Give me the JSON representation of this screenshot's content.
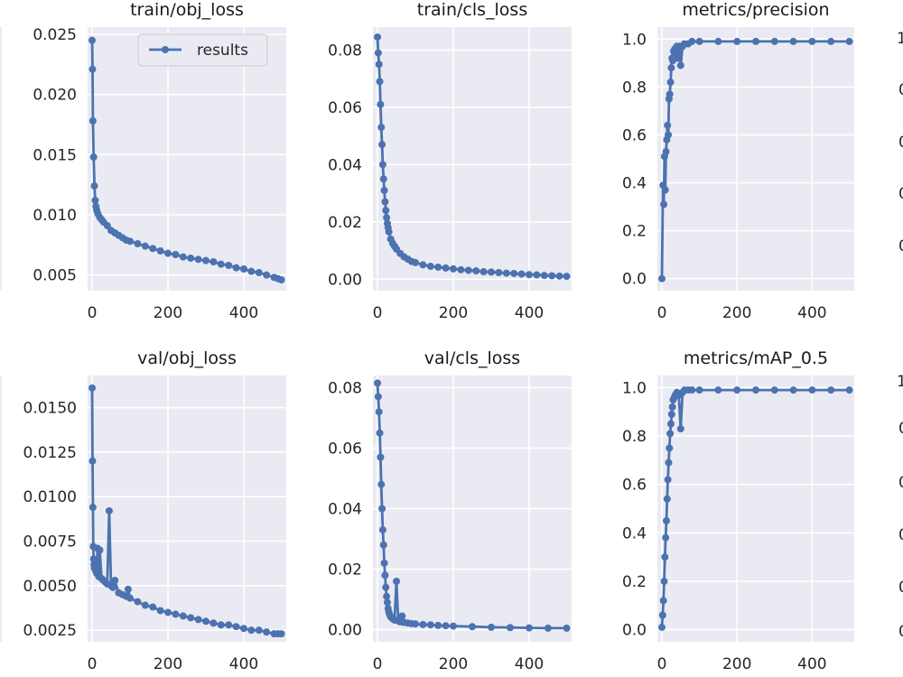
{
  "chart_data": [
    {
      "type": "line",
      "title": "train/obj_loss",
      "xlim": [
        -12,
        512
      ],
      "ylim": [
        0.0037,
        0.0256
      ],
      "xticks": [
        0,
        200,
        400
      ],
      "yticks": [
        0.005,
        0.01,
        0.015,
        0.02,
        0.025
      ],
      "ytick_labels": [
        "0.005",
        "0.010",
        "0.015",
        "0.020",
        "0.025"
      ],
      "grid": true,
      "legend": {
        "loc": "upper right",
        "entries": [
          "results"
        ]
      },
      "series": [
        {
          "name": "results",
          "x": [
            0,
            1,
            2,
            4,
            6,
            8,
            10,
            12,
            15,
            20,
            25,
            30,
            40,
            50,
            60,
            70,
            80,
            90,
            100,
            120,
            140,
            160,
            180,
            200,
            220,
            240,
            260,
            280,
            300,
            320,
            340,
            360,
            380,
            400,
            420,
            440,
            460,
            480,
            490,
            499
          ],
          "y": [
            0.0245,
            0.0221,
            0.0178,
            0.0148,
            0.0124,
            0.0112,
            0.0107,
            0.0104,
            0.0101,
            0.0098,
            0.0096,
            0.0094,
            0.0091,
            0.0087,
            0.0085,
            0.0083,
            0.0081,
            0.0079,
            0.0078,
            0.0076,
            0.0074,
            0.0072,
            0.007,
            0.0068,
            0.0067,
            0.0065,
            0.0064,
            0.0063,
            0.0062,
            0.0061,
            0.0059,
            0.0058,
            0.0056,
            0.0055,
            0.0053,
            0.0052,
            0.005,
            0.0048,
            0.0047,
            0.0046
          ]
        }
      ]
    },
    {
      "type": "line",
      "title": "train/cls_loss",
      "xlim": [
        -12,
        512
      ],
      "ylim": [
        -0.004,
        0.088
      ],
      "xticks": [
        0,
        200,
        400
      ],
      "yticks": [
        0,
        0.02,
        0.04,
        0.06,
        0.08
      ],
      "ytick_labels": [
        "0.00",
        "0.02",
        "0.04",
        "0.06",
        "0.08"
      ],
      "grid": true,
      "series": [
        {
          "name": "results",
          "x": [
            0,
            2,
            4,
            6,
            8,
            10,
            12,
            14,
            16,
            18,
            20,
            22,
            24,
            26,
            28,
            30,
            35,
            40,
            45,
            50,
            60,
            70,
            80,
            90,
            100,
            120,
            140,
            160,
            180,
            200,
            220,
            240,
            260,
            280,
            300,
            320,
            340,
            360,
            380,
            400,
            420,
            440,
            460,
            480,
            499
          ],
          "y": [
            0.0845,
            0.079,
            0.075,
            0.069,
            0.061,
            0.053,
            0.047,
            0.04,
            0.035,
            0.031,
            0.027,
            0.024,
            0.0215,
            0.0195,
            0.018,
            0.0165,
            0.014,
            0.0125,
            0.0115,
            0.0105,
            0.009,
            0.0078,
            0.007,
            0.0062,
            0.0058,
            0.005,
            0.0045,
            0.0042,
            0.0039,
            0.0036,
            0.0033,
            0.0031,
            0.0029,
            0.0026,
            0.0025,
            0.0023,
            0.0021,
            0.002,
            0.0018,
            0.0016,
            0.0015,
            0.0013,
            0.0012,
            0.0011,
            0.001
          ]
        }
      ]
    },
    {
      "type": "line",
      "title": "metrics/precision",
      "xlim": [
        -12,
        512
      ],
      "ylim": [
        -0.05,
        1.05
      ],
      "xticks": [
        0,
        200,
        400
      ],
      "yticks": [
        0,
        0.2,
        0.4,
        0.6,
        0.8,
        1.0
      ],
      "ytick_labels": [
        "0.0",
        "0.2",
        "0.4",
        "0.6",
        "0.8",
        "1.0"
      ],
      "grid": true,
      "series": [
        {
          "name": "results",
          "x": [
            0,
            3,
            5,
            7,
            9,
            11,
            13,
            15,
            17,
            19,
            21,
            23,
            25,
            27,
            29,
            31,
            33,
            35,
            37,
            40,
            43,
            46,
            50,
            55,
            60,
            70,
            80,
            100,
            150,
            200,
            250,
            300,
            350,
            400,
            450,
            499
          ],
          "y": [
            0.0,
            0.39,
            0.31,
            0.51,
            0.37,
            0.53,
            0.58,
            0.64,
            0.6,
            0.75,
            0.77,
            0.82,
            0.88,
            0.92,
            0.91,
            0.95,
            0.93,
            0.96,
            0.95,
            0.97,
            0.92,
            0.97,
            0.89,
            0.97,
            0.98,
            0.98,
            0.99,
            0.99,
            0.99,
            0.99,
            0.99,
            0.99,
            0.99,
            0.99,
            0.99,
            0.99
          ]
        }
      ]
    },
    {
      "type": "line",
      "title": "val/obj_loss",
      "xlim": [
        -12,
        512
      ],
      "ylim": [
        0.00185,
        0.0168
      ],
      "xticks": [
        0,
        200,
        400
      ],
      "yticks": [
        0.0025,
        0.005,
        0.0075,
        0.01,
        0.0125,
        0.015
      ],
      "ytick_labels": [
        "0.0025",
        "0.0050",
        "0.0075",
        "0.0100",
        "0.0125",
        "0.0150"
      ],
      "grid": true,
      "series": [
        {
          "name": "results",
          "x": [
            0,
            1,
            2,
            3,
            4,
            5,
            6,
            8,
            10,
            12,
            14,
            16,
            18,
            20,
            25,
            30,
            35,
            40,
            45,
            50,
            55,
            60,
            70,
            80,
            90,
            95,
            100,
            120,
            140,
            160,
            180,
            200,
            220,
            240,
            260,
            280,
            300,
            320,
            340,
            360,
            380,
            400,
            420,
            440,
            460,
            480,
            490,
            499
          ],
          "y": [
            0.0161,
            0.012,
            0.0094,
            0.0072,
            0.0065,
            0.0062,
            0.006,
            0.0059,
            0.0058,
            0.0057,
            0.0071,
            0.0056,
            0.0055,
            0.007,
            0.0054,
            0.0053,
            0.0052,
            0.0051,
            0.0092,
            0.005,
            0.0049,
            0.0053,
            0.0046,
            0.0045,
            0.0044,
            0.0048,
            0.0043,
            0.0041,
            0.0039,
            0.0038,
            0.0036,
            0.0035,
            0.0034,
            0.0033,
            0.0032,
            0.0031,
            0.003,
            0.0029,
            0.0028,
            0.0028,
            0.0027,
            0.0026,
            0.0025,
            0.0025,
            0.0024,
            0.0023,
            0.0023,
            0.0023
          ]
        }
      ]
    },
    {
      "type": "line",
      "title": "val/cls_loss",
      "xlim": [
        -12,
        512
      ],
      "ylim": [
        -0.004,
        0.084
      ],
      "xticks": [
        0,
        200,
        400
      ],
      "yticks": [
        0,
        0.02,
        0.04,
        0.06,
        0.08
      ],
      "ytick_labels": [
        "0.00",
        "0.02",
        "0.04",
        "0.06",
        "0.08"
      ],
      "grid": true,
      "series": [
        {
          "name": "results",
          "x": [
            0,
            2,
            4,
            6,
            8,
            10,
            12,
            14,
            16,
            18,
            20,
            22,
            24,
            26,
            28,
            30,
            32,
            35,
            40,
            45,
            50,
            55,
            60,
            65,
            70,
            80,
            90,
            100,
            120,
            140,
            160,
            180,
            200,
            250,
            300,
            350,
            400,
            450,
            499
          ],
          "y": [
            0.0815,
            0.077,
            0.072,
            0.065,
            0.057,
            0.048,
            0.04,
            0.033,
            0.028,
            0.022,
            0.018,
            0.014,
            0.011,
            0.009,
            0.007,
            0.0058,
            0.005,
            0.0042,
            0.0036,
            0.0032,
            0.016,
            0.0029,
            0.0026,
            0.0045,
            0.0024,
            0.0022,
            0.002,
            0.0019,
            0.0017,
            0.0016,
            0.0014,
            0.0013,
            0.0012,
            0.001,
            0.0008,
            0.0007,
            0.0006,
            0.0005,
            0.0005
          ]
        }
      ]
    },
    {
      "type": "line",
      "title": "metrics/mAP_0.5",
      "xlim": [
        -12,
        512
      ],
      "ylim": [
        -0.05,
        1.05
      ],
      "xticks": [
        0,
        200,
        400
      ],
      "yticks": [
        0,
        0.2,
        0.4,
        0.6,
        0.8,
        1.0
      ],
      "ytick_labels": [
        "0.0",
        "0.2",
        "0.4",
        "0.6",
        "0.8",
        "1.0"
      ],
      "grid": true,
      "series": [
        {
          "name": "results",
          "x": [
            0,
            2,
            4,
            6,
            8,
            10,
            12,
            14,
            16,
            18,
            20,
            22,
            24,
            26,
            28,
            30,
            33,
            36,
            40,
            45,
            50,
            55,
            60,
            70,
            80,
            100,
            150,
            200,
            250,
            300,
            350,
            400,
            450,
            499
          ],
          "y": [
            0.01,
            0.06,
            0.12,
            0.2,
            0.3,
            0.38,
            0.45,
            0.54,
            0.62,
            0.69,
            0.75,
            0.81,
            0.85,
            0.89,
            0.92,
            0.95,
            0.96,
            0.97,
            0.98,
            0.97,
            0.83,
            0.98,
            0.99,
            0.99,
            0.99,
            0.99,
            0.99,
            0.99,
            0.99,
            0.99,
            0.99,
            0.99,
            0.99,
            0.99
          ]
        }
      ]
    }
  ],
  "colors": {
    "background": "#eaeaf2",
    "grid": "#ffffff",
    "series": "#4c72b0",
    "text": "#262626",
    "figure": "#ffffff"
  }
}
